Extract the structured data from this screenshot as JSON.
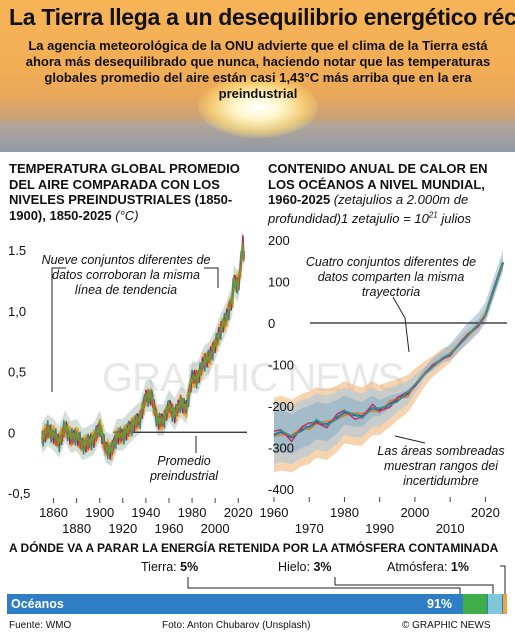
{
  "header": {
    "title": "La Tierra llega a un desequilibrio energético récord",
    "subtitle": "La agencia meteorológica de la ONU advierte que el clima de la Tierra está ahora más desequilibrado que nunca, haciendo notar que las temperaturas globales promedio del aire están casi 1,43°C más arriba que en la era preindustrial"
  },
  "left_panel": {
    "title": "TEMPERATURA GLOBAL PROMEDIO DEL AIRE COMPARADA CON LOS NIVELES PREINDUSTRIALES (1850-1900), 1850-2025",
    "unit": "(°C)"
  },
  "right_panel": {
    "title": "CONTENIDO ANUAL DE CALOR EN LOS OCÉANOS A NIVEL MUNDIAL, 1960-2025",
    "note_prefix": "(zetajulios a 2.000m de profundidad)1 zetajulio = 10",
    "note_exp": "21",
    "note_suffix": " julios"
  },
  "chart_data": [
    {
      "type": "line",
      "title": "TEMPERATURA GLOBAL PROMEDIO DEL AIRE COMPARADA CON LOS NIVELES PREINDUSTRIALES (1850-1900), 1850-2025",
      "ylabel": "(°C)",
      "xlim": [
        1850,
        2025
      ],
      "ylim": [
        -0.5,
        1.6
      ],
      "x_ticks_top": [
        "1860",
        "1900",
        "1940",
        "1980",
        "2020"
      ],
      "x_ticks_bottom": [
        "1880",
        "1920",
        "1960",
        "2000"
      ],
      "x_tick_values_top": [
        1860,
        1900,
        1940,
        1980,
        2020
      ],
      "x_tick_values_bottom": [
        1880,
        1920,
        1960,
        2000
      ],
      "y_ticks": [
        "1.5",
        "1,0",
        "0,5",
        "0",
        "-0,5"
      ],
      "y_tick_values": [
        1.5,
        1.0,
        0.5,
        0,
        -0.5
      ],
      "reference_line": 0,
      "annotations": [
        "Nueve conjuntos diferentes de datos corroboran la misma línea de tendencia",
        "Promedio preindustrial"
      ],
      "series_count": 9,
      "colors": [
        "#e8a532",
        "#2f8a8a",
        "#8e2a6a",
        "#d64b2a",
        "#6a9a3a"
      ],
      "x": [
        1850,
        1855,
        1860,
        1865,
        1870,
        1875,
        1880,
        1885,
        1890,
        1895,
        1900,
        1905,
        1910,
        1915,
        1920,
        1925,
        1930,
        1935,
        1940,
        1945,
        1950,
        1955,
        1960,
        1965,
        1970,
        1975,
        1980,
        1985,
        1990,
        1995,
        2000,
        2005,
        2010,
        2015,
        2016,
        2020,
        2023,
        2024,
        2025
      ],
      "y": [
        -0.05,
        0.02,
        -0.02,
        -0.08,
        0.05,
        -0.04,
        -0.02,
        -0.1,
        -0.08,
        -0.05,
        0.05,
        -0.12,
        -0.15,
        -0.02,
        -0.02,
        0.03,
        0.08,
        0.12,
        0.3,
        0.3,
        0.1,
        0.1,
        0.22,
        0.15,
        0.25,
        0.2,
        0.45,
        0.45,
        0.58,
        0.62,
        0.72,
        0.85,
        0.95,
        1.1,
        1.25,
        1.2,
        1.45,
        1.55,
        1.43
      ]
    },
    {
      "type": "line",
      "title": "CONTENIDO ANUAL DE CALOR EN LOS OCÉANOS A NIVEL MUNDIAL, 1960-2025",
      "ylabel": "zetajulios",
      "xlim": [
        1960,
        2025
      ],
      "ylim": [
        -400,
        200
      ],
      "x_ticks_top": [
        "1960",
        "1980",
        "2000",
        "2020"
      ],
      "x_ticks_bottom": [
        "1970",
        "1990",
        "2010"
      ],
      "x_tick_values_top": [
        1960,
        1980,
        2000,
        2020
      ],
      "x_tick_values_bottom": [
        1970,
        1990,
        2010
      ],
      "y_ticks": [
        "200",
        "100",
        "0",
        "-100",
        "-200",
        "-300",
        "-400"
      ],
      "y_tick_values": [
        200,
        100,
        0,
        -100,
        -200,
        -300,
        -400
      ],
      "reference_line": 0,
      "annotations": [
        "Cuatro conjuntos diferentes de datos comparten la misma trayectoria",
        "Las áreas sombreadas muestran rangos dei incertidumbre"
      ],
      "colors": [
        "#1f5a9a",
        "#e07a2a",
        "#c0306a",
        "#2a9a8a"
      ],
      "x": [
        1960,
        1962,
        1965,
        1968,
        1970,
        1972,
        1975,
        1978,
        1980,
        1983,
        1985,
        1988,
        1990,
        1993,
        1995,
        1998,
        2000,
        2003,
        2005,
        2008,
        2010,
        2013,
        2015,
        2018,
        2020,
        2022,
        2025
      ],
      "y": [
        -270,
        -262,
        -275,
        -255,
        -250,
        -238,
        -245,
        -228,
        -215,
        -222,
        -225,
        -205,
        -210,
        -195,
        -185,
        -170,
        -150,
        -120,
        -105,
        -85,
        -75,
        -48,
        -30,
        -5,
        20,
        70,
        145
      ],
      "band_lower": [
        -360,
        -355,
        -360,
        -345,
        -340,
        -325,
        -330,
        -310,
        -290,
        -295,
        -295,
        -270,
        -270,
        -250,
        -235,
        -215,
        -190,
        -150,
        -130,
        -110,
        -95,
        -65,
        -45,
        -20,
        5,
        55,
        130
      ],
      "band_upper": [
        -180,
        -175,
        -185,
        -170,
        -165,
        -155,
        -160,
        -150,
        -140,
        -150,
        -155,
        -140,
        -150,
        -140,
        -135,
        -125,
        -110,
        -90,
        -80,
        -60,
        -55,
        -30,
        -15,
        10,
        35,
        85,
        160
      ]
    }
  ],
  "bottom": {
    "heading": "A DÓNDE VA A PARAR LA ENERGÍA RETENIDA POR LA ATMÓSFERA CONTAMINADA",
    "bar_label": "Océanos",
    "bar_value": "91%",
    "tierra_label": "Tierra: ",
    "tierra_value": "5%",
    "hielo_label": "Hielo: ",
    "hielo_value": "3%",
    "atmos_label": "Atmósfera: ",
    "atmos_value": "1%",
    "share_oceanos": 0.91,
    "share_tierra": 0.05,
    "share_hielo": 0.03,
    "share_atmos": 0.01,
    "colors": {
      "oceanos": "#2d7ec4",
      "tierra": "#3fae49",
      "hielo": "#7fc7d8",
      "atmos": "#f0a43a"
    }
  },
  "footer": {
    "source": "Fuente: WMO",
    "photo": "Foto: Anton Chubarov (Unsplash)",
    "brand": "© GRAPHIC NEWS"
  },
  "watermark": "GRAPHIC NEWS"
}
